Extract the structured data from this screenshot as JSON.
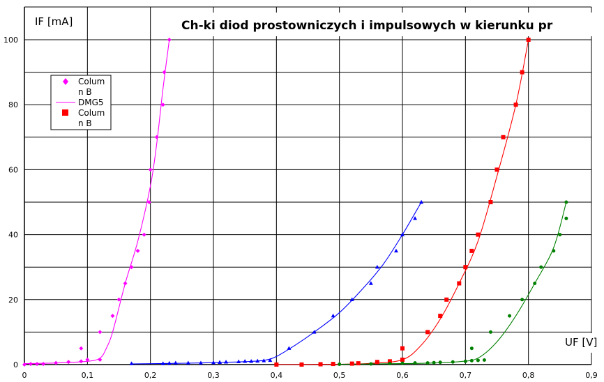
{
  "chart_data": {
    "type": "scatter",
    "title": "Ch-ki diod prostowniczych i impulsowych w kierunku pr",
    "xlabel": "UF [V]",
    "ylabel": "IF [mA]",
    "xlim": [
      0,
      0.9
    ],
    "ylim": [
      0,
      100
    ],
    "xticks": [
      "0",
      "0,1",
      "0,2",
      "0,3",
      "0,4",
      "0,5",
      "0,6",
      "0,7",
      "0,8",
      "0,9"
    ],
    "yticks": [
      "0",
      "20",
      "40",
      "60",
      "80",
      "100"
    ],
    "grid": true,
    "legend": {
      "placement": "left",
      "entries": [
        {
          "label_line1": "Colum",
          "label_line2": "n B",
          "marker": "diamond",
          "color": "#ff00ff"
        },
        {
          "label_line1": "DMG5",
          "label_line2": "",
          "marker": "line",
          "color": "#ff00ff"
        },
        {
          "label_line1": "Colum",
          "label_line2": "n B",
          "marker": "square",
          "color": "#ff0000"
        }
      ]
    },
    "series": [
      {
        "color": "#ff00ff",
        "marker": "diamond",
        "points": [
          [
            0,
            0
          ],
          [
            0.01,
            0.2
          ],
          [
            0.02,
            0.2
          ],
          [
            0.03,
            0.2
          ],
          [
            0.05,
            0.5
          ],
          [
            0.07,
            0.8
          ],
          [
            0.09,
            1
          ],
          [
            0.09,
            5
          ],
          [
            0.1,
            1.5
          ],
          [
            0.12,
            1.5
          ],
          [
            0.12,
            10
          ],
          [
            0.14,
            15
          ],
          [
            0.15,
            20
          ],
          [
            0.16,
            25
          ],
          [
            0.17,
            30
          ],
          [
            0.18,
            35
          ],
          [
            0.19,
            40
          ],
          [
            0.198,
            50
          ],
          [
            0.2,
            60
          ],
          [
            0.21,
            70
          ],
          [
            0.22,
            80
          ],
          [
            0.222,
            90
          ],
          [
            0.23,
            100
          ]
        ],
        "curve": [
          [
            0,
            0.3
          ],
          [
            0.05,
            0.5
          ],
          [
            0.1,
            1
          ],
          [
            0.12,
            2
          ],
          [
            0.13,
            5
          ],
          [
            0.14,
            10
          ],
          [
            0.16,
            25
          ],
          [
            0.18,
            38
          ],
          [
            0.2,
            55
          ],
          [
            0.21,
            68
          ],
          [
            0.22,
            85
          ],
          [
            0.23,
            100
          ]
        ]
      },
      {
        "color": "#0000ff",
        "marker": "triangle",
        "points": [
          [
            0.17,
            0.3
          ],
          [
            0.22,
            0.3
          ],
          [
            0.23,
            0.4
          ],
          [
            0.24,
            0.5
          ],
          [
            0.26,
            0.5
          ],
          [
            0.28,
            0.5
          ],
          [
            0.3,
            0.6
          ],
          [
            0.31,
            0.7
          ],
          [
            0.32,
            0.8
          ],
          [
            0.34,
            0.9
          ],
          [
            0.35,
            1
          ],
          [
            0.36,
            1
          ],
          [
            0.37,
            1.1
          ],
          [
            0.38,
            1.2
          ],
          [
            0.39,
            1.3
          ],
          [
            0.42,
            5
          ],
          [
            0.46,
            10
          ],
          [
            0.49,
            15
          ],
          [
            0.52,
            20
          ],
          [
            0.55,
            25
          ],
          [
            0.56,
            30
          ],
          [
            0.59,
            35
          ],
          [
            0.6,
            40
          ],
          [
            0.62,
            45
          ],
          [
            0.63,
            50
          ]
        ],
        "curve": [
          [
            0.17,
            0.2
          ],
          [
            0.25,
            0.4
          ],
          [
            0.3,
            0.6
          ],
          [
            0.35,
            0.9
          ],
          [
            0.38,
            1.3
          ],
          [
            0.4,
            2.5
          ],
          [
            0.43,
            6
          ],
          [
            0.46,
            10
          ],
          [
            0.5,
            16
          ],
          [
            0.54,
            24
          ],
          [
            0.57,
            31
          ],
          [
            0.6,
            40
          ],
          [
            0.63,
            50
          ]
        ]
      },
      {
        "color": "#ff0000",
        "marker": "square",
        "points": [
          [
            0.4,
            0
          ],
          [
            0.44,
            0
          ],
          [
            0.47,
            0.1
          ],
          [
            0.49,
            0.2
          ],
          [
            0.52,
            0.3
          ],
          [
            0.53,
            0.4
          ],
          [
            0.56,
            0.8
          ],
          [
            0.58,
            1
          ],
          [
            0.6,
            1.5
          ],
          [
            0.6,
            5
          ],
          [
            0.64,
            10
          ],
          [
            0.66,
            15
          ],
          [
            0.67,
            20
          ],
          [
            0.69,
            25
          ],
          [
            0.7,
            30
          ],
          [
            0.71,
            35
          ],
          [
            0.72,
            40
          ],
          [
            0.74,
            50
          ],
          [
            0.75,
            60
          ],
          [
            0.76,
            70
          ],
          [
            0.78,
            80
          ],
          [
            0.79,
            90
          ],
          [
            0.8,
            100
          ]
        ],
        "curve": [
          [
            0.4,
            0
          ],
          [
            0.5,
            0.1
          ],
          [
            0.55,
            0.4
          ],
          [
            0.6,
            1.5
          ],
          [
            0.63,
            6
          ],
          [
            0.66,
            14
          ],
          [
            0.69,
            25
          ],
          [
            0.72,
            38
          ],
          [
            0.75,
            58
          ],
          [
            0.78,
            80
          ],
          [
            0.8,
            100
          ]
        ]
      },
      {
        "color": "#008000",
        "marker": "circle",
        "points": [
          [
            0.5,
            0.1
          ],
          [
            0.55,
            0.2
          ],
          [
            0.58,
            0.3
          ],
          [
            0.6,
            0.4
          ],
          [
            0.62,
            0.5
          ],
          [
            0.64,
            0.5
          ],
          [
            0.65,
            0.6
          ],
          [
            0.66,
            0.7
          ],
          [
            0.68,
            0.8
          ],
          [
            0.7,
            1
          ],
          [
            0.71,
            1.2
          ],
          [
            0.71,
            5
          ],
          [
            0.72,
            1.3
          ],
          [
            0.73,
            1.4
          ],
          [
            0.74,
            10
          ],
          [
            0.77,
            15
          ],
          [
            0.79,
            20
          ],
          [
            0.81,
            25
          ],
          [
            0.82,
            30
          ],
          [
            0.84,
            35
          ],
          [
            0.85,
            40
          ],
          [
            0.86,
            45
          ],
          [
            0.86,
            50
          ]
        ],
        "curve": [
          [
            0.5,
            0.1
          ],
          [
            0.6,
            0.3
          ],
          [
            0.65,
            0.5
          ],
          [
            0.69,
            0.9
          ],
          [
            0.72,
            2
          ],
          [
            0.75,
            7
          ],
          [
            0.78,
            15
          ],
          [
            0.81,
            25
          ],
          [
            0.84,
            36
          ],
          [
            0.86,
            50
          ]
        ]
      }
    ]
  }
}
